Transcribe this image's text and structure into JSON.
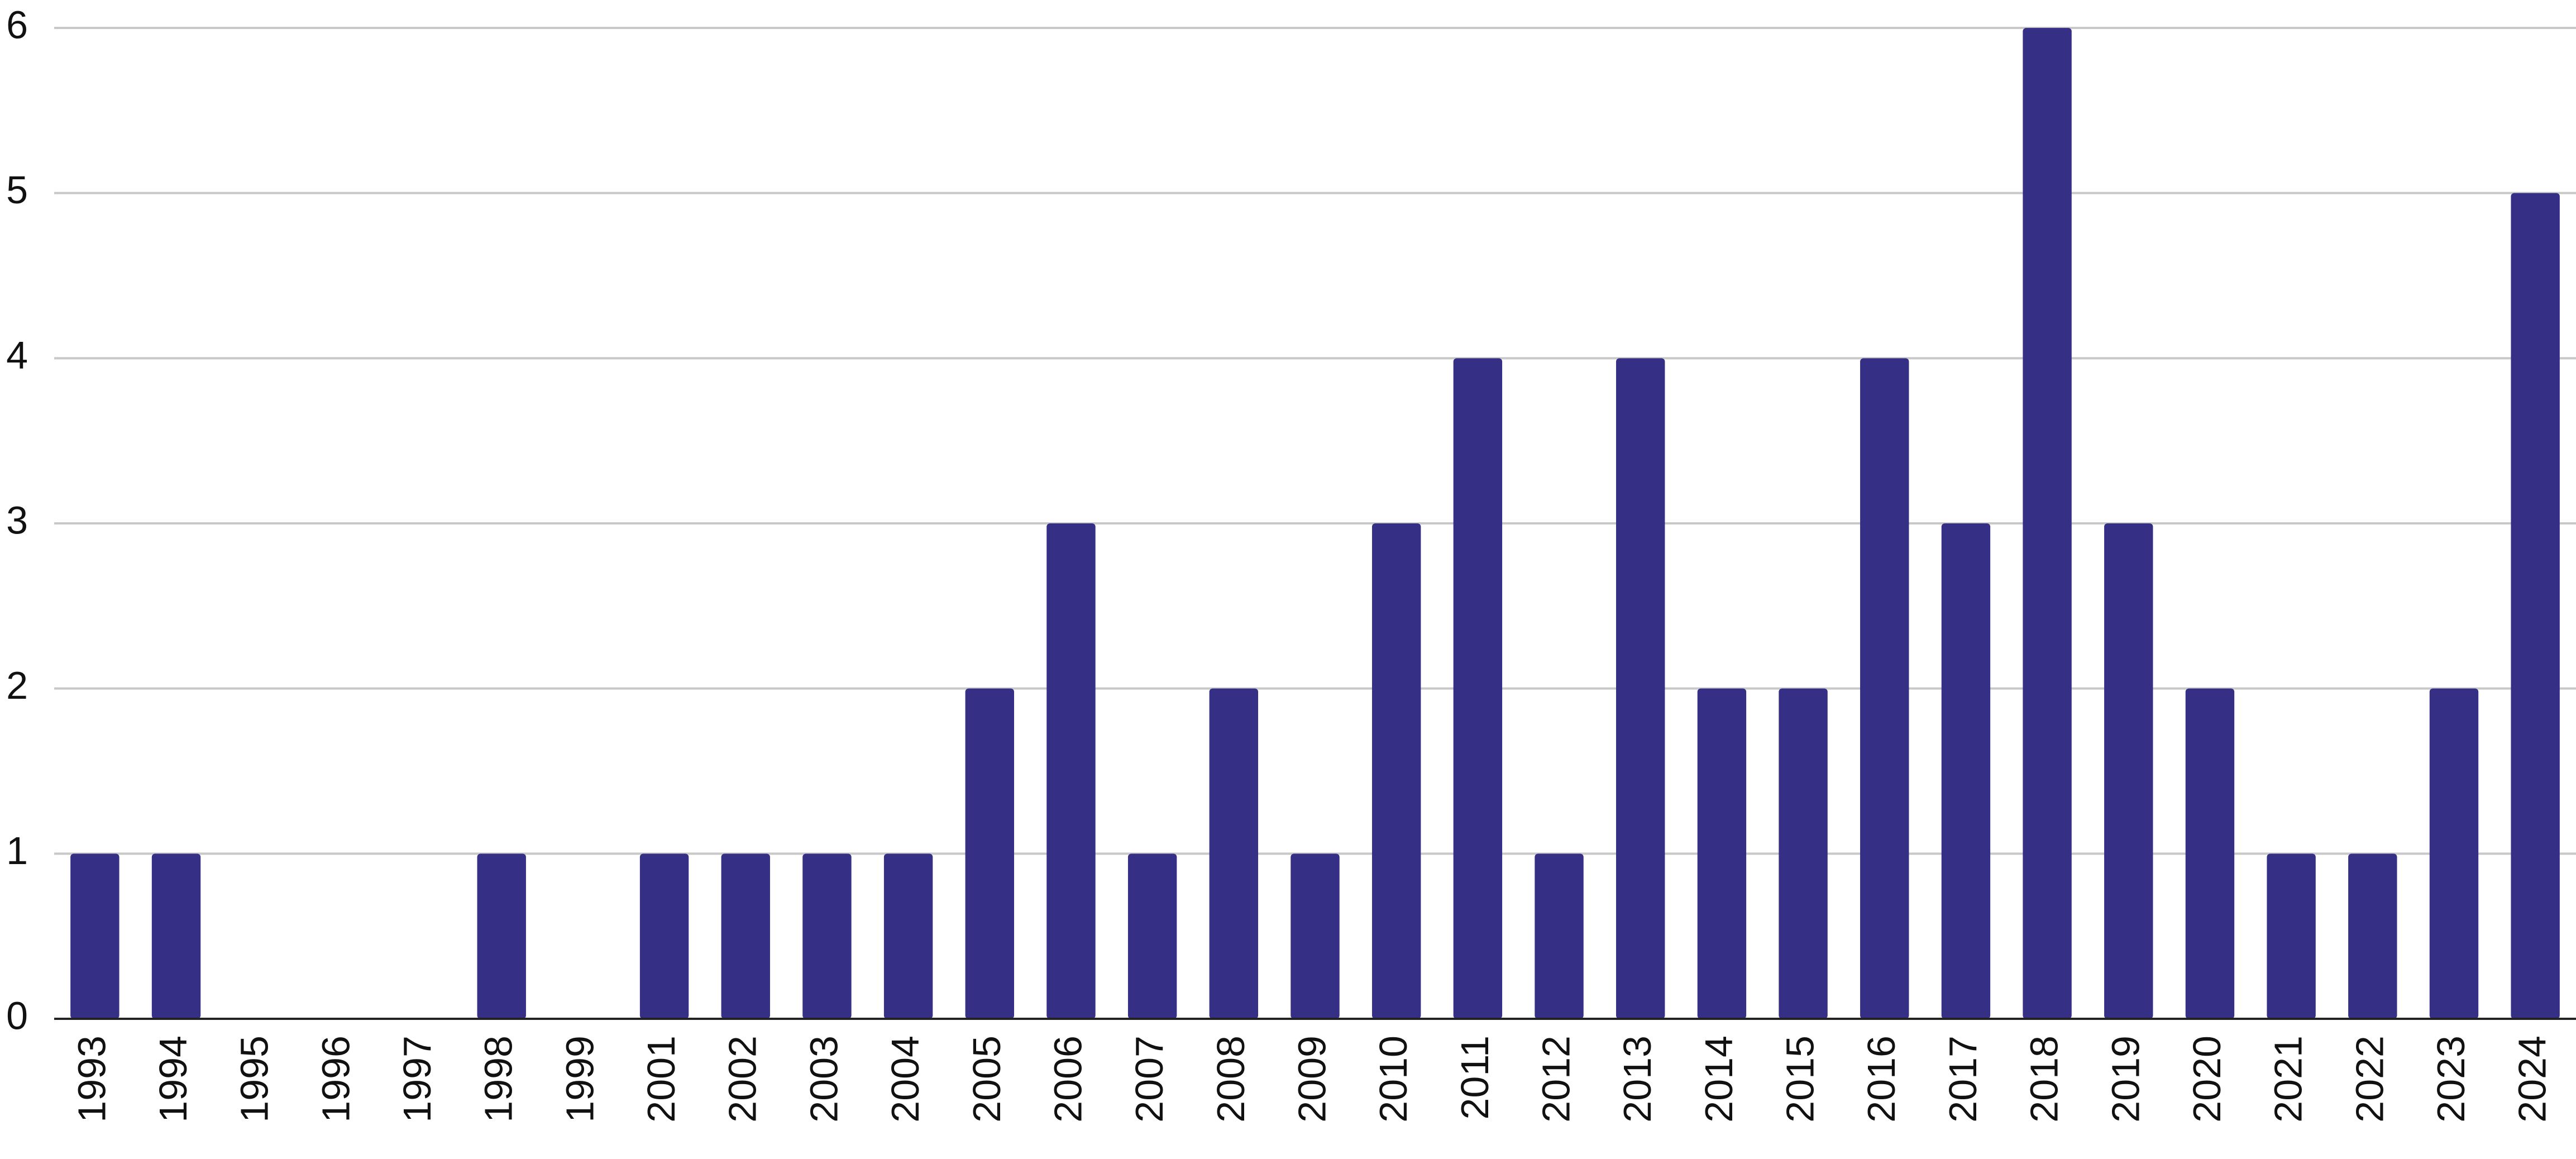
{
  "chart_data": {
    "type": "bar",
    "categories": [
      "1993",
      "1994",
      "1995",
      "1996",
      "1997",
      "1998",
      "1999",
      "2001",
      "2002",
      "2003",
      "2004",
      "2005",
      "2006",
      "2007",
      "2008",
      "2009",
      "2010",
      "2011",
      "2012",
      "2013",
      "2014",
      "2015",
      "2016",
      "2017",
      "2018",
      "2019",
      "2020",
      "2021",
      "2022",
      "2023",
      "2024"
    ],
    "values": [
      1,
      1,
      0,
      0,
      0,
      1,
      0,
      1,
      1,
      1,
      1,
      2,
      3,
      1,
      2,
      1,
      3,
      4,
      1,
      4,
      2,
      2,
      4,
      3,
      6,
      3,
      2,
      1,
      1,
      2,
      5
    ],
    "color": "#352f85",
    "ylim": [
      0,
      6
    ],
    "yticks": [
      0,
      1,
      2,
      3,
      4,
      5,
      6
    ],
    "grid": true
  }
}
